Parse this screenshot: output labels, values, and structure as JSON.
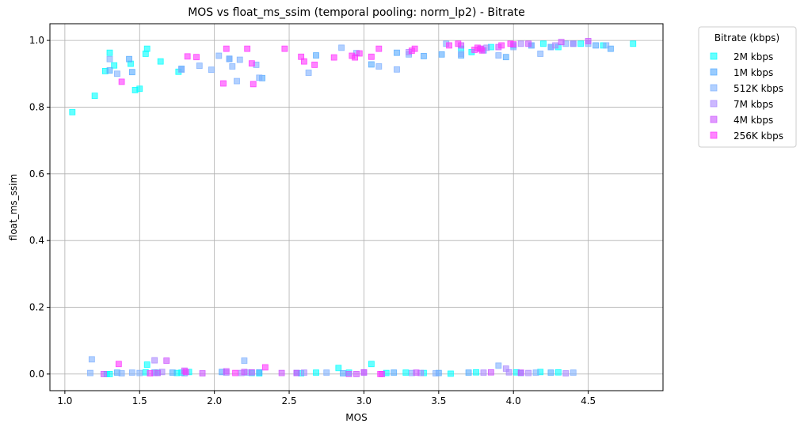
{
  "chart_data": {
    "type": "scatter",
    "title": "MOS vs float_ms_ssim (temporal pooling: norm_lp2) - Bitrate",
    "xlabel": "MOS",
    "ylabel": "float_ms_ssim",
    "xlim": [
      0.9,
      5.0
    ],
    "ylim": [
      -0.05,
      1.05
    ],
    "x_ticks": [
      1.0,
      1.5,
      2.0,
      2.5,
      3.0,
      3.5,
      4.0,
      4.5
    ],
    "x_tick_labels": [
      "1.0",
      "1.5",
      "2.0",
      "2.5",
      "3.0",
      "3.5",
      "4.0",
      "4.5"
    ],
    "y_ticks": [
      0.0,
      0.2,
      0.4,
      0.6,
      0.8,
      1.0
    ],
    "y_tick_labels": [
      "0.0",
      "0.2",
      "0.4",
      "0.6",
      "0.8",
      "1.0"
    ],
    "grid": true,
    "marker": "square",
    "legend": {
      "title": "Bitrate (kbps)",
      "placement": "outside-right-top"
    },
    "series": [
      {
        "name": "2M kbps",
        "color": "#00ffff",
        "x": [
          1.05,
          1.2,
          1.27,
          1.3,
          1.33,
          1.44,
          1.47,
          1.5,
          1.54,
          1.55,
          1.64,
          1.76,
          1.3,
          1.55,
          1.78,
          2.3,
          2.68,
          2.9,
          3.28,
          3.4,
          3.65,
          3.72,
          3.85,
          4.0,
          4.2,
          4.3,
          4.45,
          4.6,
          4.8,
          1.28,
          1.54,
          1.62,
          1.75,
          1.83,
          2.25,
          2.58,
          2.83,
          3.05,
          3.15,
          3.58,
          3.75,
          4.02,
          4.18,
          4.3
        ],
        "y": [
          0.785,
          0.834,
          0.908,
          0.963,
          0.925,
          0.93,
          0.851,
          0.855,
          0.96,
          0.975,
          0.937,
          0.906,
          0.0,
          0.028,
          0.004,
          0.002,
          0.004,
          0.004,
          0.004,
          0.003,
          0.975,
          0.965,
          0.98,
          0.985,
          0.99,
          0.98,
          0.99,
          0.985,
          0.99,
          0.0,
          0.005,
          0.004,
          0.003,
          0.006,
          0.003,
          0.002,
          0.018,
          0.03,
          0.003,
          0.001,
          0.005,
          0.005,
          0.006,
          0.005
        ]
      },
      {
        "name": "1M kbps",
        "color": "#55aaff",
        "x": [
          1.3,
          1.43,
          1.45,
          1.78,
          2.1,
          2.32,
          2.68,
          3.05,
          3.22,
          3.4,
          3.52,
          3.65,
          3.8,
          3.95,
          4.12,
          4.25,
          4.4,
          4.55,
          4.65,
          1.35,
          1.72,
          2.05,
          2.3,
          2.55,
          2.86,
          3.2,
          3.5,
          3.7,
          4.05,
          4.25
        ],
        "y": [
          0.91,
          0.944,
          0.905,
          0.915,
          0.945,
          0.887,
          0.955,
          0.928,
          0.963,
          0.953,
          0.958,
          0.955,
          0.97,
          0.95,
          0.985,
          0.98,
          0.99,
          0.985,
          0.975,
          0.004,
          0.004,
          0.006,
          0.005,
          0.003,
          0.002,
          0.004,
          0.003,
          0.004,
          0.003,
          0.004
        ]
      },
      {
        "name": "512K kbps",
        "color": "#7fb0ff",
        "x": [
          1.18,
          1.3,
          1.35,
          1.45,
          1.5,
          1.6,
          1.78,
          1.9,
          1.98,
          2.03,
          2.1,
          2.12,
          2.15,
          2.17,
          2.22,
          2.28,
          2.3,
          2.63,
          2.85,
          2.95,
          3.1,
          3.22,
          3.3,
          3.55,
          3.65,
          3.78,
          3.9,
          4.0,
          4.12,
          4.18,
          4.25,
          4.35,
          4.5,
          4.62,
          1.17,
          1.38,
          1.6,
          1.8,
          2.2,
          2.75,
          3.32,
          3.48,
          3.9,
          4.15,
          4.4
        ],
        "y": [
          0.044,
          0.944,
          0.9,
          0.004,
          0.003,
          0.005,
          0.912,
          0.924,
          0.912,
          0.954,
          0.944,
          0.922,
          0.878,
          0.942,
          0.004,
          0.927,
          0.888,
          0.903,
          0.978,
          0.962,
          0.922,
          0.913,
          0.958,
          0.99,
          0.96,
          0.975,
          0.955,
          0.98,
          0.985,
          0.96,
          0.98,
          0.99,
          0.99,
          0.985,
          0.003,
          0.002,
          0.003,
          0.002,
          0.04,
          0.004,
          0.003,
          0.002,
          0.025,
          0.004,
          0.004
        ]
      },
      {
        "name": "7M kbps",
        "color": "#aa88ff",
        "x": [
          1.6,
          1.65,
          2.08,
          2.18,
          2.6,
          3.0,
          3.38,
          3.8,
          3.95,
          4.05,
          4.28,
          4.4,
          3.3,
          3.82,
          3.97,
          4.1,
          4.35
        ],
        "y": [
          0.041,
          0.006,
          0.004,
          0.003,
          0.004,
          0.004,
          0.003,
          0.004,
          0.016,
          0.99,
          0.985,
          0.99,
          0.965,
          0.978,
          0.005,
          0.003,
          0.002
        ],
        "unused": false
      },
      {
        "name": "4M kbps",
        "color": "#cc55ff",
        "x": [
          1.26,
          1.62,
          1.8,
          2.08,
          2.25,
          2.45,
          2.9,
          3.0,
          3.85,
          4.05,
          1.68,
          2.2,
          2.95,
          3.12,
          3.65,
          3.9,
          4.1,
          4.32,
          4.5,
          1.92,
          2.55,
          3.35
        ],
        "y": [
          0.0,
          0.003,
          0.01,
          0.008,
          0.005,
          0.003,
          0.0,
          0.005,
          0.005,
          0.004,
          0.04,
          0.006,
          0.0,
          0.0,
          0.985,
          0.98,
          0.99,
          0.995,
          0.998,
          0.002,
          0.003,
          0.004
        ]
      },
      {
        "name": "256K kbps",
        "color": "#ff33ff",
        "x": [
          1.38,
          1.82,
          1.88,
          2.06,
          2.08,
          2.22,
          2.25,
          2.26,
          2.47,
          2.58,
          2.6,
          2.67,
          2.8,
          2.92,
          2.94,
          2.97,
          3.05,
          3.1,
          3.32,
          3.34,
          3.57,
          3.63,
          3.74,
          3.76,
          3.78,
          3.79,
          3.92,
          3.98,
          4.0,
          1.36,
          1.57,
          1.81,
          2.14,
          2.34,
          3.11
        ],
        "y": [
          0.876,
          0.952,
          0.95,
          0.871,
          0.975,
          0.975,
          0.931,
          0.869,
          0.975,
          0.951,
          0.937,
          0.927,
          0.949,
          0.954,
          0.949,
          0.961,
          0.951,
          0.975,
          0.969,
          0.975,
          0.985,
          0.99,
          0.972,
          0.978,
          0.975,
          0.97,
          0.985,
          0.99,
          0.988,
          0.03,
          0.002,
          0.006,
          0.003,
          0.02,
          0.0
        ]
      }
    ]
  }
}
